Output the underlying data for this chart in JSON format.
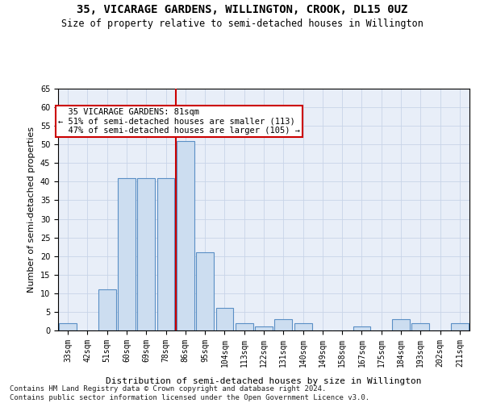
{
  "title": "35, VICARAGE GARDENS, WILLINGTON, CROOK, DL15 0UZ",
  "subtitle": "Size of property relative to semi-detached houses in Willington",
  "xlabel": "Distribution of semi-detached houses by size in Willington",
  "ylabel": "Number of semi-detached properties",
  "categories": [
    "33sqm",
    "42sqm",
    "51sqm",
    "60sqm",
    "69sqm",
    "78sqm",
    "86sqm",
    "95sqm",
    "104sqm",
    "113sqm",
    "122sqm",
    "131sqm",
    "140sqm",
    "149sqm",
    "158sqm",
    "167sqm",
    "175sqm",
    "184sqm",
    "193sqm",
    "202sqm",
    "211sqm"
  ],
  "values": [
    2,
    0,
    11,
    41,
    41,
    41,
    51,
    21,
    6,
    2,
    1,
    3,
    2,
    0,
    0,
    1,
    0,
    3,
    2,
    0,
    2
  ],
  "bar_color": "#ccddf0",
  "bar_edge_color": "#5a8fc5",
  "property_line_x": 5.5,
  "annotation_text": "  35 VICARAGE GARDENS: 81sqm\n← 51% of semi-detached houses are smaller (113)\n  47% of semi-detached houses are larger (105) →",
  "annotation_box_color": "#ffffff",
  "annotation_box_edge_color": "#cc0000",
  "vline_color": "#cc0000",
  "ylim": [
    0,
    65
  ],
  "yticks": [
    0,
    5,
    10,
    15,
    20,
    25,
    30,
    35,
    40,
    45,
    50,
    55,
    60,
    65
  ],
  "grid_color": "#c8d4e8",
  "footer": "Contains HM Land Registry data © Crown copyright and database right 2024.\nContains public sector information licensed under the Open Government Licence v3.0.",
  "title_fontsize": 10,
  "subtitle_fontsize": 8.5,
  "axis_label_fontsize": 8,
  "tick_fontsize": 7,
  "footer_fontsize": 6.5
}
